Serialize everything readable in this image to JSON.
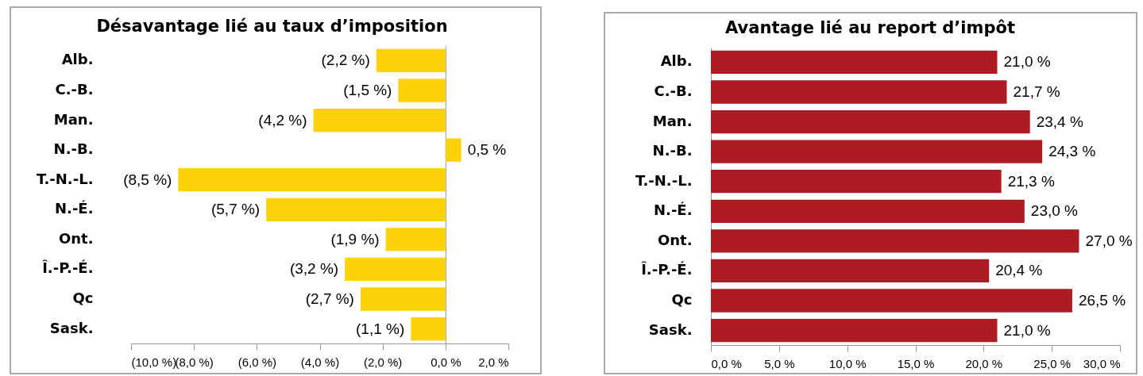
{
  "chart_data": [
    {
      "type": "bar",
      "orientation": "horizontal",
      "title": "Désavantage lié au taux d’imposition",
      "categories": [
        "Alb.",
        "C.-B.",
        "Man.",
        "N.-B.",
        "T.-N.-L.",
        "N.-É.",
        "Ont.",
        "Î.-P.-É.",
        "Qc",
        "Sask."
      ],
      "values": [
        -2.2,
        -1.5,
        -4.2,
        0.5,
        -8.5,
        -5.7,
        -1.9,
        -3.2,
        -2.7,
        -1.1
      ],
      "value_labels": [
        "(2,2 %)",
        "(1,5 %)",
        "(4,2 %)",
        "0,5 %",
        "(8,5 %)",
        "(5,7 %)",
        "(1,9 %)",
        "(3,2 %)",
        "(2,7 %)",
        "(1,1 %)"
      ],
      "color": "#fcd20a",
      "xlim": [
        -10,
        2
      ],
      "xticks": [
        {
          "value": -10,
          "label": "(10,0 %)"
        },
        {
          "value": -8,
          "label": "(8,0 %)"
        },
        {
          "value": -6,
          "label": "(6,0 %)"
        },
        {
          "value": -4,
          "label": "(4,0 %)"
        },
        {
          "value": -2,
          "label": "(2,0 %)"
        },
        {
          "value": 0,
          "label": "0,0 %"
        },
        {
          "value": 2,
          "label": "2,0 %"
        }
      ]
    },
    {
      "type": "bar",
      "orientation": "horizontal",
      "title": "Avantage lié au report d’impôt",
      "categories": [
        "Alb.",
        "C.-B.",
        "Man.",
        "N.-B.",
        "T.-N.-L.",
        "N.-É.",
        "Ont.",
        "Î.-P.-É.",
        "Qc",
        "Sask."
      ],
      "values": [
        21.0,
        21.7,
        23.4,
        24.3,
        21.3,
        23.0,
        27.0,
        20.4,
        26.5,
        21.0
      ],
      "value_labels": [
        "21,0 %",
        "21,7 %",
        "23,4 %",
        "24,3 %",
        "21,3 %",
        "23,0 %",
        "27,0 %",
        "20,4 %",
        "26,5 %",
        "21,0 %"
      ],
      "color": "#ad1c23",
      "xlim": [
        0,
        30
      ],
      "xticks": [
        {
          "value": 0,
          "label": "0,0 %"
        },
        {
          "value": 5,
          "label": "5,0 %"
        },
        {
          "value": 10,
          "label": "10,0 %"
        },
        {
          "value": 15,
          "label": "15,0 %"
        },
        {
          "value": 20,
          "label": "20,0 %"
        },
        {
          "value": 25,
          "label": "25,0 %"
        },
        {
          "value": 30,
          "label": "30,0 %"
        }
      ]
    }
  ]
}
